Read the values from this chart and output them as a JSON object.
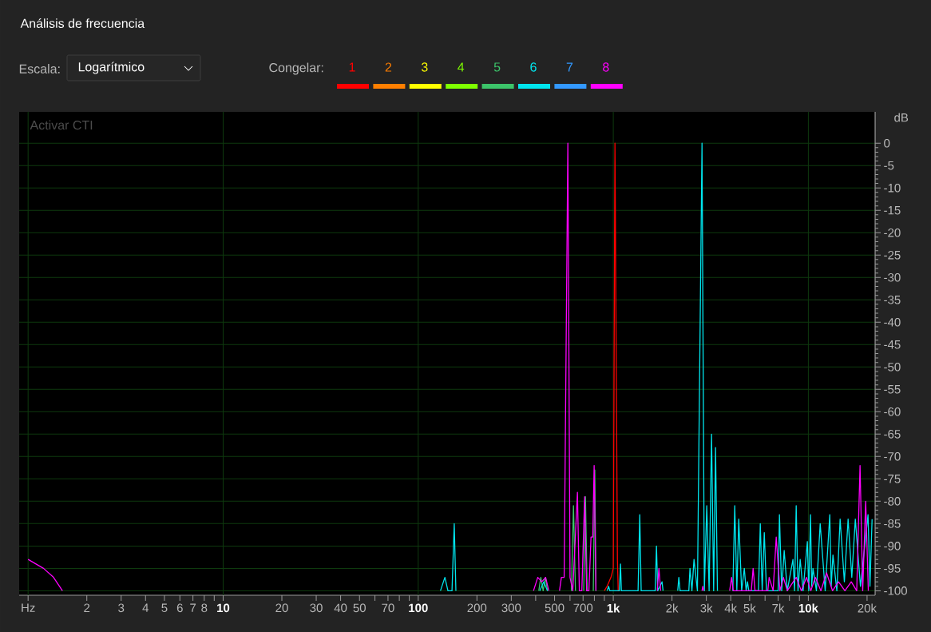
{
  "chart_data": {
    "type": "line",
    "title": "Análisis de frecuencia",
    "annotations": [
      "Escala:",
      "Logarítmico",
      "Activar CTI"
    ],
    "legend_title": "Congelar:",
    "legend": "top",
    "ylabel": "dB",
    "grid": true,
    "log": "x",
    "line_style": "solid",
    "marker": "none",
    "xlim": [
      0.9,
      22000
    ],
    "ylim": [
      -101,
      7
    ],
    "xticks": [
      {
        "value": 1,
        "label": "Hz"
      },
      2,
      3,
      4,
      5,
      6,
      7,
      8,
      {
        "value": 9,
        "label": null
      },
      10,
      20,
      30,
      40,
      50,
      {
        "value": 60,
        "label": null
      },
      70,
      {
        "value": 80,
        "label": null
      },
      {
        "value": 90,
        "label": null
      },
      100,
      200,
      300,
      {
        "value": 400,
        "label": null
      },
      500,
      {
        "value": 600,
        "label": null
      },
      700,
      {
        "value": 800,
        "label": null
      },
      {
        "value": 900,
        "label": null
      },
      {
        "value": 1000,
        "label": "1k"
      },
      {
        "value": 2000,
        "label": "2k"
      },
      {
        "value": 3000,
        "label": "3k"
      },
      {
        "value": 4000,
        "label": "4k"
      },
      {
        "value": 5000,
        "label": "5k"
      },
      {
        "value": 6000,
        "label": null
      },
      {
        "value": 7000,
        "label": "7k"
      },
      {
        "value": 8000,
        "label": null
      },
      {
        "value": 9000,
        "label": null
      },
      {
        "value": 10000,
        "label": "10k"
      },
      {
        "value": 20000,
        "label": "20k"
      }
    ],
    "yticks": [
      0,
      -5,
      -10,
      -15,
      -20,
      -25,
      -30,
      -35,
      -40,
      -45,
      -50,
      -55,
      -60,
      -65,
      -70,
      -75,
      -80,
      -85,
      -90,
      -95,
      -100
    ],
    "series": [
      {
        "name": "1",
        "color": "#ff0000",
        "x": [
          900,
          929,
          973,
          1000,
          1020,
          1050,
          1060
        ],
        "values": [
          -100,
          -99,
          -97,
          -95,
          0,
          -93,
          -100
        ]
      },
      {
        "name": "2",
        "color": "#ff7f00"
      },
      {
        "name": "3",
        "color": "#ffff00"
      },
      {
        "name": "4",
        "color": "#7fff00"
      },
      {
        "name": "5",
        "color": "#3cc46a",
        "x": [
          415,
          425,
          437,
          449,
          460,
          500,
          610,
          625,
          640,
          680,
          705,
          720,
          735,
          760,
          790,
          804,
          815
        ],
        "values": [
          -100,
          -97,
          -100,
          -97,
          -100,
          null,
          -100,
          -81,
          -100,
          null,
          -100,
          -79,
          -100,
          null,
          -100,
          -73,
          -100
        ]
      },
      {
        "name": "6",
        "color": "#00e5ee",
        "x": [
          130,
          137,
          142,
          149,
          153,
          156,
          300,
          420,
          440,
          460,
          700,
          930,
          946,
          960,
          1075,
          1089,
          1100,
          1340,
          1367,
          1390,
          1640,
          1665,
          1690,
          1778,
          1800,
          2000,
          2140,
          2168,
          2200,
          2440,
          2473,
          2530,
          2593,
          2700,
          2850,
          2930,
          3015,
          3100,
          3190,
          3270,
          3344,
          3420,
          3800,
          4100,
          4195,
          4300,
          4398,
          4550,
          4696,
          4800,
          4876,
          4950,
          5550,
          5671,
          5800,
          5945,
          6100,
          7000,
          7110,
          7300,
          7520,
          7800,
          8340,
          8500,
          8665,
          8850,
          9080,
          9400,
          9885,
          10050,
          10260,
          10400,
          10560,
          11000,
          11500,
          12200,
          12880,
          13100,
          13370,
          14000,
          14550,
          15300,
          15990,
          16700,
          17410,
          18500,
          20230,
          20700,
          21220
        ],
        "values": [
          -100,
          -97,
          -100,
          -100,
          -85,
          -100,
          null,
          -100,
          -98,
          -100,
          null,
          -100,
          -99,
          -100,
          -100,
          -94,
          -100,
          -100,
          -83,
          -100,
          -100,
          -90,
          -100,
          -98,
          -100,
          null,
          -100,
          -97,
          -100,
          -100,
          -95,
          -100,
          -93,
          -100,
          0,
          -100,
          -81,
          -100,
          -65,
          -100,
          -68,
          -100,
          null,
          -100,
          -81,
          -100,
          -84,
          -100,
          -95,
          -100,
          -98,
          -100,
          -100,
          -85,
          -100,
          -87,
          -100,
          -100,
          -83,
          -100,
          -91,
          -100,
          -93,
          -100,
          -81,
          -100,
          -93,
          -100,
          -89,
          -100,
          -83,
          -99,
          -95,
          -100,
          -85,
          -100,
          -83,
          -99,
          -92,
          -100,
          -84,
          -98,
          -84,
          -97,
          -84,
          -99,
          -83,
          -99,
          -84
        ]
      },
      {
        "name": "7",
        "color": "#3399ff"
      },
      {
        "name": "8",
        "color": "#ff00ff",
        "x": [
          1,
          1.2,
          1.35,
          1.5,
          100,
          390,
          410,
          430,
          450,
          467,
          500,
          530,
          542,
          560,
          585,
          600,
          620,
          655,
          670,
          690,
          713,
          730,
          750,
          769,
          785,
          798,
          815,
          1000,
          1680,
          1714,
          1750,
          2000,
          2850,
          2877,
          2910,
          3500,
          3950,
          4040,
          4120,
          5100,
          5210,
          5330,
          6200,
          6295,
          6600,
          6845,
          7150,
          7450,
          7800,
          8665,
          9200,
          9790,
          10300,
          10860,
          11600,
          12400,
          13300,
          14280,
          15400,
          16600,
          17700,
          18410,
          19000,
          19680,
          20300
        ],
        "values": [
          -93,
          -95,
          -97,
          -100,
          null,
          -100,
          -97,
          -98,
          -97,
          -100,
          null,
          -100,
          -97,
          -97,
          0,
          -97,
          -100,
          -78,
          -100,
          -100,
          -79,
          -100,
          -100,
          -88,
          -88,
          -72,
          -100,
          null,
          -100,
          -95,
          -100,
          null,
          -100,
          -99,
          -100,
          null,
          -100,
          -97,
          -100,
          -100,
          -95,
          -100,
          -100,
          -97,
          -100,
          -88,
          -100,
          -97,
          -100,
          -97,
          -100,
          -97,
          -100,
          -97,
          -100,
          -96,
          -100,
          -98,
          -100,
          -98,
          -100,
          -72,
          -100,
          -80,
          -100
        ]
      }
    ]
  }
}
